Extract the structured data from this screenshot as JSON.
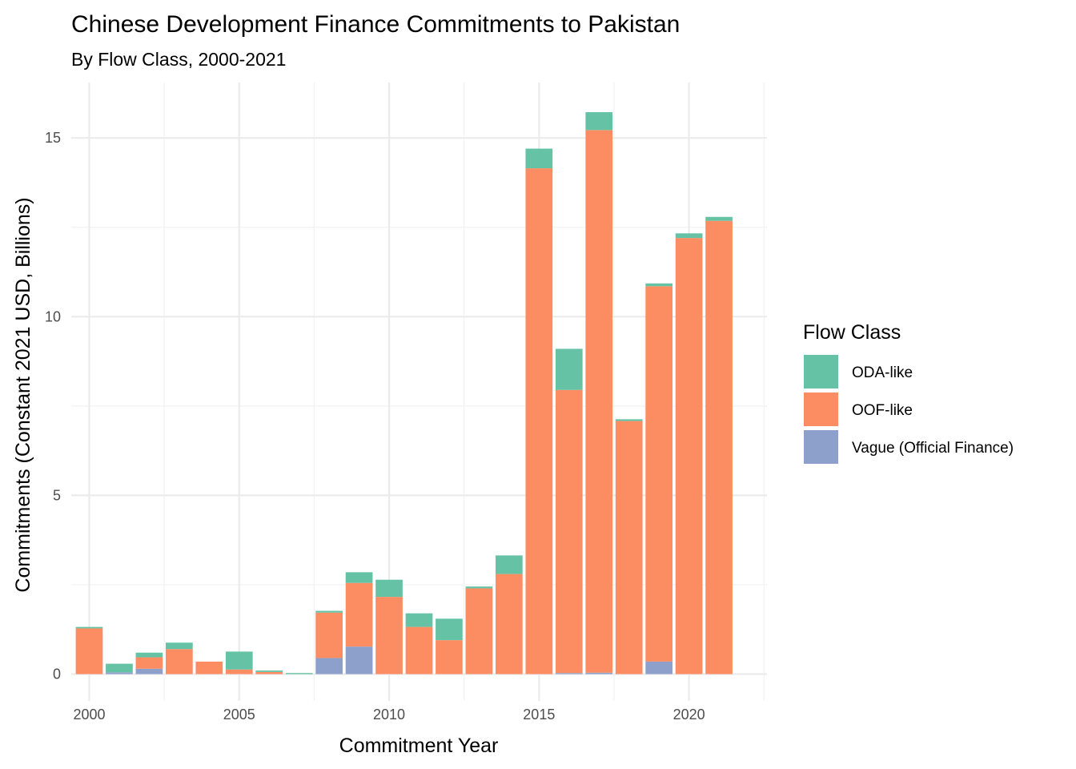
{
  "chart_data": {
    "type": "bar",
    "stacked": true,
    "title": "Chinese Development Finance Commitments to Pakistan",
    "subtitle": "By Flow Class, 2000-2021",
    "xlabel": "Commitment Year",
    "ylabel": "Commitments (Constant 2021 USD, Billions)",
    "x_ticks": [
      "2000",
      "2005",
      "2010",
      "2015",
      "2020"
    ],
    "y_ticks": [
      "0",
      "5",
      "10",
      "15"
    ],
    "xlim": [
      1999.4,
      2022.6
    ],
    "ylim": [
      -0.75,
      16.55
    ],
    "grid": true,
    "legend": {
      "title": "Flow Class",
      "position": "right"
    },
    "years": [
      2000,
      2001,
      2002,
      2003,
      2004,
      2005,
      2006,
      2007,
      2008,
      2009,
      2010,
      2011,
      2012,
      2013,
      2014,
      2015,
      2016,
      2017,
      2018,
      2019,
      2020,
      2021
    ],
    "series": [
      {
        "name": "Vague (Official Finance)",
        "color": "#8da0cb",
        "values": [
          0,
          0.05,
          0.15,
          0,
          0,
          0,
          0,
          0,
          0.45,
          0.77,
          0,
          0,
          0,
          0,
          0,
          0,
          0.03,
          0.04,
          0,
          0.35,
          0,
          0
        ]
      },
      {
        "name": "OOF-like",
        "color": "#fc8d62",
        "values": [
          1.28,
          0,
          0.32,
          0.7,
          0.35,
          0.13,
          0.06,
          0,
          1.27,
          1.78,
          2.16,
          1.32,
          0.95,
          2.4,
          2.8,
          14.15,
          7.92,
          15.18,
          7.08,
          10.5,
          12.2,
          12.68
        ]
      },
      {
        "name": "ODA-like",
        "color": "#66c2a5",
        "values": [
          0.04,
          0.24,
          0.13,
          0.18,
          0,
          0.5,
          0.04,
          0.03,
          0.05,
          0.3,
          0.48,
          0.38,
          0.6,
          0.05,
          0.52,
          0.55,
          1.15,
          0.5,
          0.05,
          0.08,
          0.13,
          0.11
        ]
      }
    ],
    "legend_order": [
      "ODA-like",
      "OOF-like",
      "Vague (Official Finance)"
    ]
  }
}
